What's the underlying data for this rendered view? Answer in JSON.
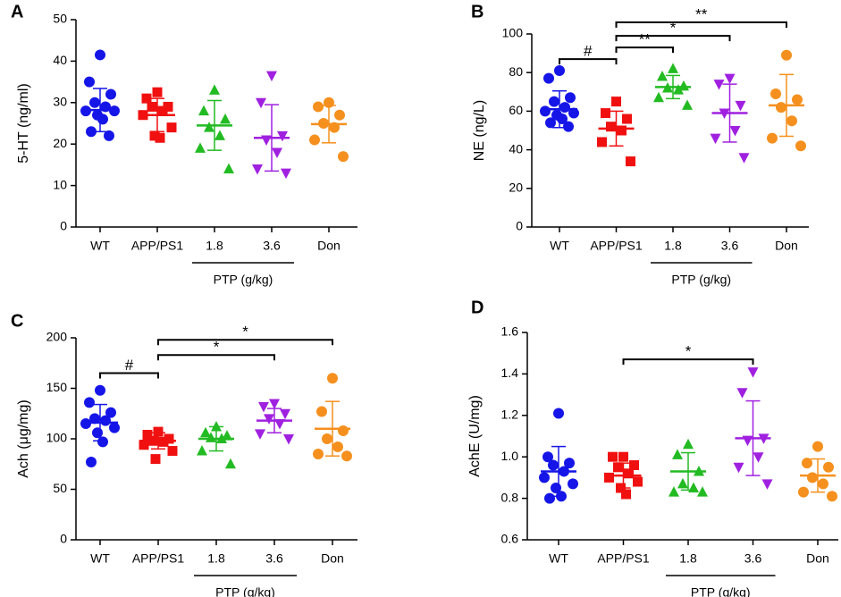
{
  "chart_data": [
    {
      "type": "dot",
      "panel": "A",
      "ylabel": "5-HT (ng/ml)",
      "group_label": "PTP (g/kg)",
      "group_span": [
        2,
        3
      ],
      "categories": [
        "WT",
        "APP/PS1",
        "1.8",
        "3.6",
        "Don"
      ],
      "colors": [
        "#1515e8",
        "#f01010",
        "#22bb22",
        "#a020e0",
        "#f5901e"
      ],
      "markers": [
        "circle",
        "square",
        "triangle",
        "triangle-down",
        "circle"
      ],
      "points": [
        [
          41.5,
          35,
          32,
          30,
          29,
          28,
          28,
          27,
          26,
          23,
          22
        ],
        [
          32.5,
          31,
          29,
          29,
          28,
          27,
          24,
          22,
          21.5
        ],
        [
          33,
          28,
          26,
          24,
          22,
          19,
          14
        ],
        [
          36.5,
          30,
          22,
          21,
          18,
          14,
          13
        ],
        [
          30,
          29,
          27,
          25,
          24,
          21,
          17
        ]
      ],
      "means": [
        28.2,
        27,
        24.5,
        21.5,
        24.8
      ],
      "sds": [
        5.2,
        4,
        6,
        8,
        4.5
      ],
      "ylim": [
        0,
        50
      ],
      "yticks": [
        0,
        10,
        20,
        30,
        40,
        50
      ],
      "brackets": []
    },
    {
      "type": "dot",
      "panel": "B",
      "ylabel": "NE (ng/L)",
      "group_label": "PTP (g/kg)",
      "group_span": [
        2,
        3
      ],
      "categories": [
        "WT",
        "APP/PS1",
        "1.8",
        "3.6",
        "Don"
      ],
      "colors": [
        "#1515e8",
        "#f01010",
        "#22bb22",
        "#a020e0",
        "#f5901e"
      ],
      "markers": [
        "circle",
        "square",
        "triangle",
        "triangle-down",
        "circle"
      ],
      "points": [
        [
          81,
          77,
          67,
          65,
          62,
          60,
          59,
          58,
          56,
          54,
          52
        ],
        [
          65,
          59,
          56,
          52,
          50,
          44,
          34
        ],
        [
          82,
          78,
          73,
          72,
          71,
          67,
          63
        ],
        [
          77,
          74,
          63,
          59,
          50,
          46,
          36
        ],
        [
          89,
          69,
          66,
          62,
          55,
          46,
          42
        ]
      ],
      "means": [
        61,
        51,
        72.5,
        59,
        63
      ],
      "sds": [
        9.5,
        9,
        6,
        15,
        16
      ],
      "ylim": [
        0,
        100
      ],
      "yticks": [
        0,
        20,
        40,
        60,
        80,
        100
      ],
      "brackets": [
        {
          "from": 0,
          "to": 1,
          "y": 87,
          "label": "#"
        },
        {
          "from": 1,
          "to": 2,
          "y": 93,
          "label": "**"
        },
        {
          "from": 1,
          "to": 3,
          "y": 99,
          "label": "*"
        },
        {
          "from": 1,
          "to": 4,
          "y": 106,
          "label": "**"
        }
      ]
    },
    {
      "type": "dot",
      "panel": "C",
      "ylabel": "Ach (μg/mg)",
      "group_label": "PTP (g/kg)",
      "group_span": [
        2,
        3
      ],
      "categories": [
        "WT",
        "APP/PS1",
        "1.8",
        "3.6",
        "Don"
      ],
      "colors": [
        "#1515e8",
        "#f01010",
        "#22bb22",
        "#a020e0",
        "#f5901e"
      ],
      "markers": [
        "circle",
        "square",
        "triangle",
        "triangle-down",
        "circle"
      ],
      "points": [
        [
          148,
          136,
          126,
          120,
          118,
          115,
          111,
          106,
          97,
          77
        ],
        [
          107,
          104,
          100,
          98,
          97,
          94,
          88,
          80
        ],
        [
          112,
          106,
          103,
          101,
          100,
          88,
          75
        ],
        [
          135,
          132,
          125,
          120,
          115,
          105,
          100
        ],
        [
          160,
          127,
          108,
          100,
          92,
          85,
          83
        ]
      ],
      "means": [
        116,
        98,
        100,
        118,
        110
      ],
      "sds": [
        18,
        8,
        12,
        12,
        27
      ],
      "ylim": [
        0,
        200
      ],
      "yticks": [
        0,
        50,
        100,
        150,
        200
      ],
      "brackets": [
        {
          "from": 0,
          "to": 1,
          "y": 165,
          "label": "#"
        },
        {
          "from": 1,
          "to": 3,
          "y": 183,
          "label": "*"
        },
        {
          "from": 1,
          "to": 4,
          "y": 198,
          "label": "*"
        }
      ]
    },
    {
      "type": "dot",
      "panel": "D",
      "ylabel": "AchE (U/mg)",
      "group_label": "PTP (g/kg)",
      "group_span": [
        2,
        3
      ],
      "categories": [
        "WT",
        "APP/PS1",
        "1.8",
        "3.6",
        "Don"
      ],
      "colors": [
        "#1515e8",
        "#f01010",
        "#22bb22",
        "#a020e0",
        "#f5901e"
      ],
      "markers": [
        "circle",
        "square",
        "triangle",
        "triangle-down",
        "circle"
      ],
      "points": [
        [
          1.21,
          1.0,
          0.97,
          0.96,
          0.93,
          0.9,
          0.87,
          0.85,
          0.81,
          0.8
        ],
        [
          1.0,
          1.0,
          0.96,
          0.95,
          0.92,
          0.9,
          0.88,
          0.85,
          0.82
        ],
        [
          1.06,
          1.01,
          0.93,
          0.87,
          0.85,
          0.83,
          0.83
        ],
        [
          1.41,
          1.31,
          1.09,
          1.08,
          1.0,
          0.95,
          0.87
        ],
        [
          1.05,
          0.97,
          0.95,
          0.9,
          0.87,
          0.83,
          0.81
        ]
      ],
      "means": [
        0.93,
        0.91,
        0.93,
        1.09,
        0.91
      ],
      "sds": [
        0.12,
        0.06,
        0.09,
        0.18,
        0.08
      ],
      "ylim": [
        0.6,
        1.6
      ],
      "yticks": [
        0.6,
        0.8,
        {
          "value": 1,
          "label": "1.0"
        },
        1.2,
        1.4,
        1.6
      ],
      "brackets": [
        {
          "from": 1,
          "to": 3,
          "y": 1.47,
          "label": "*"
        }
      ]
    }
  ]
}
